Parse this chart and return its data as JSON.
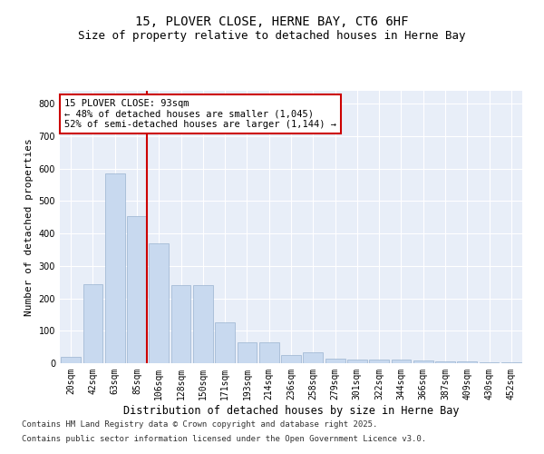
{
  "title1": "15, PLOVER CLOSE, HERNE BAY, CT6 6HF",
  "title2": "Size of property relative to detached houses in Herne Bay",
  "xlabel": "Distribution of detached houses by size in Herne Bay",
  "ylabel": "Number of detached properties",
  "bar_labels": [
    "20sqm",
    "42sqm",
    "63sqm",
    "85sqm",
    "106sqm",
    "128sqm",
    "150sqm",
    "171sqm",
    "193sqm",
    "214sqm",
    "236sqm",
    "258sqm",
    "279sqm",
    "301sqm",
    "322sqm",
    "344sqm",
    "366sqm",
    "387sqm",
    "409sqm",
    "430sqm",
    "452sqm"
  ],
  "bar_values": [
    20,
    245,
    585,
    455,
    370,
    240,
    240,
    125,
    65,
    65,
    25,
    35,
    15,
    12,
    12,
    10,
    8,
    6,
    5,
    4,
    3
  ],
  "bar_color": "#c8d9ef",
  "bar_edge_color": "#9ab3d0",
  "vline_color": "#cc0000",
  "annotation_text": "15 PLOVER CLOSE: 93sqm\n← 48% of detached houses are smaller (1,045)\n52% of semi-detached houses are larger (1,144) →",
  "annotation_box_facecolor": "#ffffff",
  "annotation_box_edgecolor": "#cc0000",
  "ylim": [
    0,
    840
  ],
  "yticks": [
    0,
    100,
    200,
    300,
    400,
    500,
    600,
    700,
    800
  ],
  "bg_color": "#e8eef8",
  "grid_color": "#ffffff",
  "footer1": "Contains HM Land Registry data © Crown copyright and database right 2025.",
  "footer2": "Contains public sector information licensed under the Open Government Licence v3.0.",
  "title1_fontsize": 10,
  "title2_fontsize": 9,
  "xlabel_fontsize": 8.5,
  "ylabel_fontsize": 8,
  "tick_fontsize": 7,
  "annotation_fontsize": 7.5,
  "footer_fontsize": 6.5
}
